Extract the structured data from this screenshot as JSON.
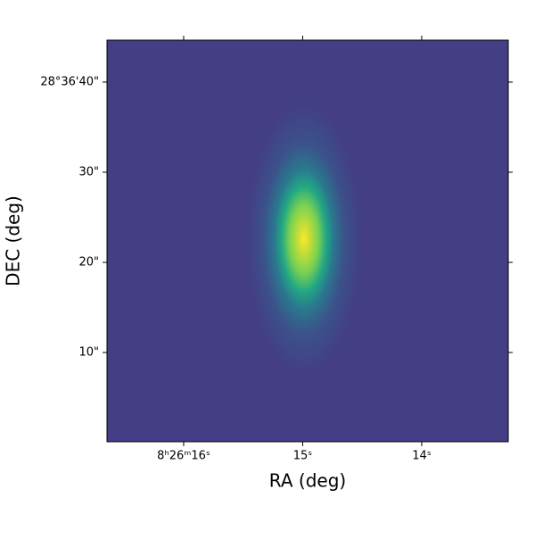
{
  "chart_data": {
    "type": "image",
    "xlabel": "RA (deg)",
    "ylabel": "DEC (deg)",
    "xlim": [
      16.644,
      13.273
    ],
    "ylim": [
      0.1,
      44.65
    ],
    "xticks": [
      {
        "value": 16,
        "label": "8ʰ26ᵐ16ˢ"
      },
      {
        "value": 15,
        "label": "15ˢ"
      },
      {
        "value": 14,
        "label": "14ˢ"
      }
    ],
    "yticks": [
      {
        "value": 40,
        "label": "28°36'40\""
      },
      {
        "value": 30,
        "label": "30\""
      },
      {
        "value": 20,
        "label": "20\""
      },
      {
        "value": 10,
        "label": "10\""
      }
    ],
    "background": "#433e85",
    "source": {
      "x": 14.99,
      "y": 22.6,
      "sigma_x": 0.16,
      "sigma_y": 5.0
    },
    "colormap": [
      "#fde725",
      "#7ad151",
      "#22a884",
      "#2a788e",
      "#3b528b",
      "#433e85"
    ]
  }
}
